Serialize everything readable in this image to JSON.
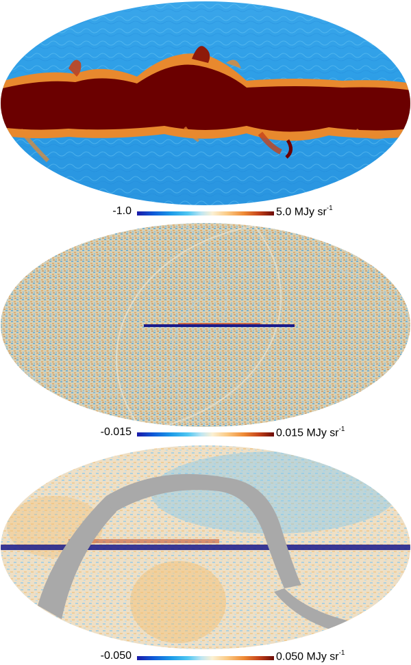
{
  "panels": [
    {
      "min_label": "-1.0",
      "max_label": "5.0 MJy sr",
      "unit_exponent": "-1",
      "colors": {
        "bg": "#2a9de6",
        "band": "#6b0000",
        "edge": "#d8621c"
      }
    },
    {
      "min_label": "-0.015",
      "max_label": "0.015 MJy sr",
      "unit_exponent": "-1",
      "colors": {
        "bg": "#d9cfb0",
        "band": "#1a1a8a",
        "edge": "#3d6cd0"
      }
    },
    {
      "min_label": "-0.050",
      "max_label": "0.050 MJy sr",
      "unit_exponent": "-1",
      "colors": {
        "bg": "#eedfc5",
        "band": "#1a1a8a",
        "mask": "#a9a9a9"
      }
    }
  ],
  "colormap": [
    "#1a1aa8",
    "#0f5ad8",
    "#1c9be8",
    "#4fc6f2",
    "#bfe6f2",
    "#fbf1d4",
    "#fbc983",
    "#ef8a35",
    "#c4421a",
    "#6b0a06"
  ]
}
